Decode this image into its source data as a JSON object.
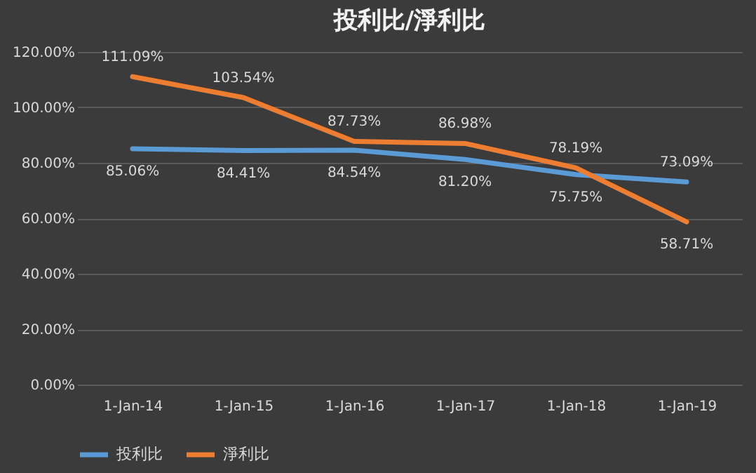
{
  "chart_data": {
    "type": "line",
    "title": "投利比/淨利比",
    "categories": [
      "1-Jan-14",
      "1-Jan-15",
      "1-Jan-16",
      "1-Jan-17",
      "1-Jan-18",
      "1-Jan-19"
    ],
    "series": [
      {
        "name": "投利比",
        "color": "#5b9bd5",
        "values": [
          85.06,
          84.41,
          84.54,
          81.2,
          75.75,
          73.09
        ],
        "value_labels": [
          "85.06%",
          "84.41%",
          "84.54%",
          "81.20%",
          "75.75%",
          "73.09%"
        ]
      },
      {
        "name": "淨利比",
        "color": "#ed7d31",
        "values": [
          111.09,
          103.54,
          87.73,
          86.98,
          78.19,
          58.71
        ],
        "value_labels": [
          "111.09%",
          "103.54%",
          "87.73%",
          "86.98%",
          "78.19%",
          "58.71%"
        ]
      }
    ],
    "ylim": [
      0,
      120
    ],
    "yticks": [
      {
        "value": 0,
        "label": "0.00%"
      },
      {
        "value": 20,
        "label": "20.00%"
      },
      {
        "value": 40,
        "label": "40.00%"
      },
      {
        "value": 60,
        "label": "60.00%"
      },
      {
        "value": 80,
        "label": "80.00%"
      },
      {
        "value": 100,
        "label": "100.00%"
      },
      {
        "value": 120,
        "label": "120.00%"
      }
    ],
    "grid": "y",
    "legend": "bottom",
    "marker": "none",
    "line_style": "solid"
  }
}
